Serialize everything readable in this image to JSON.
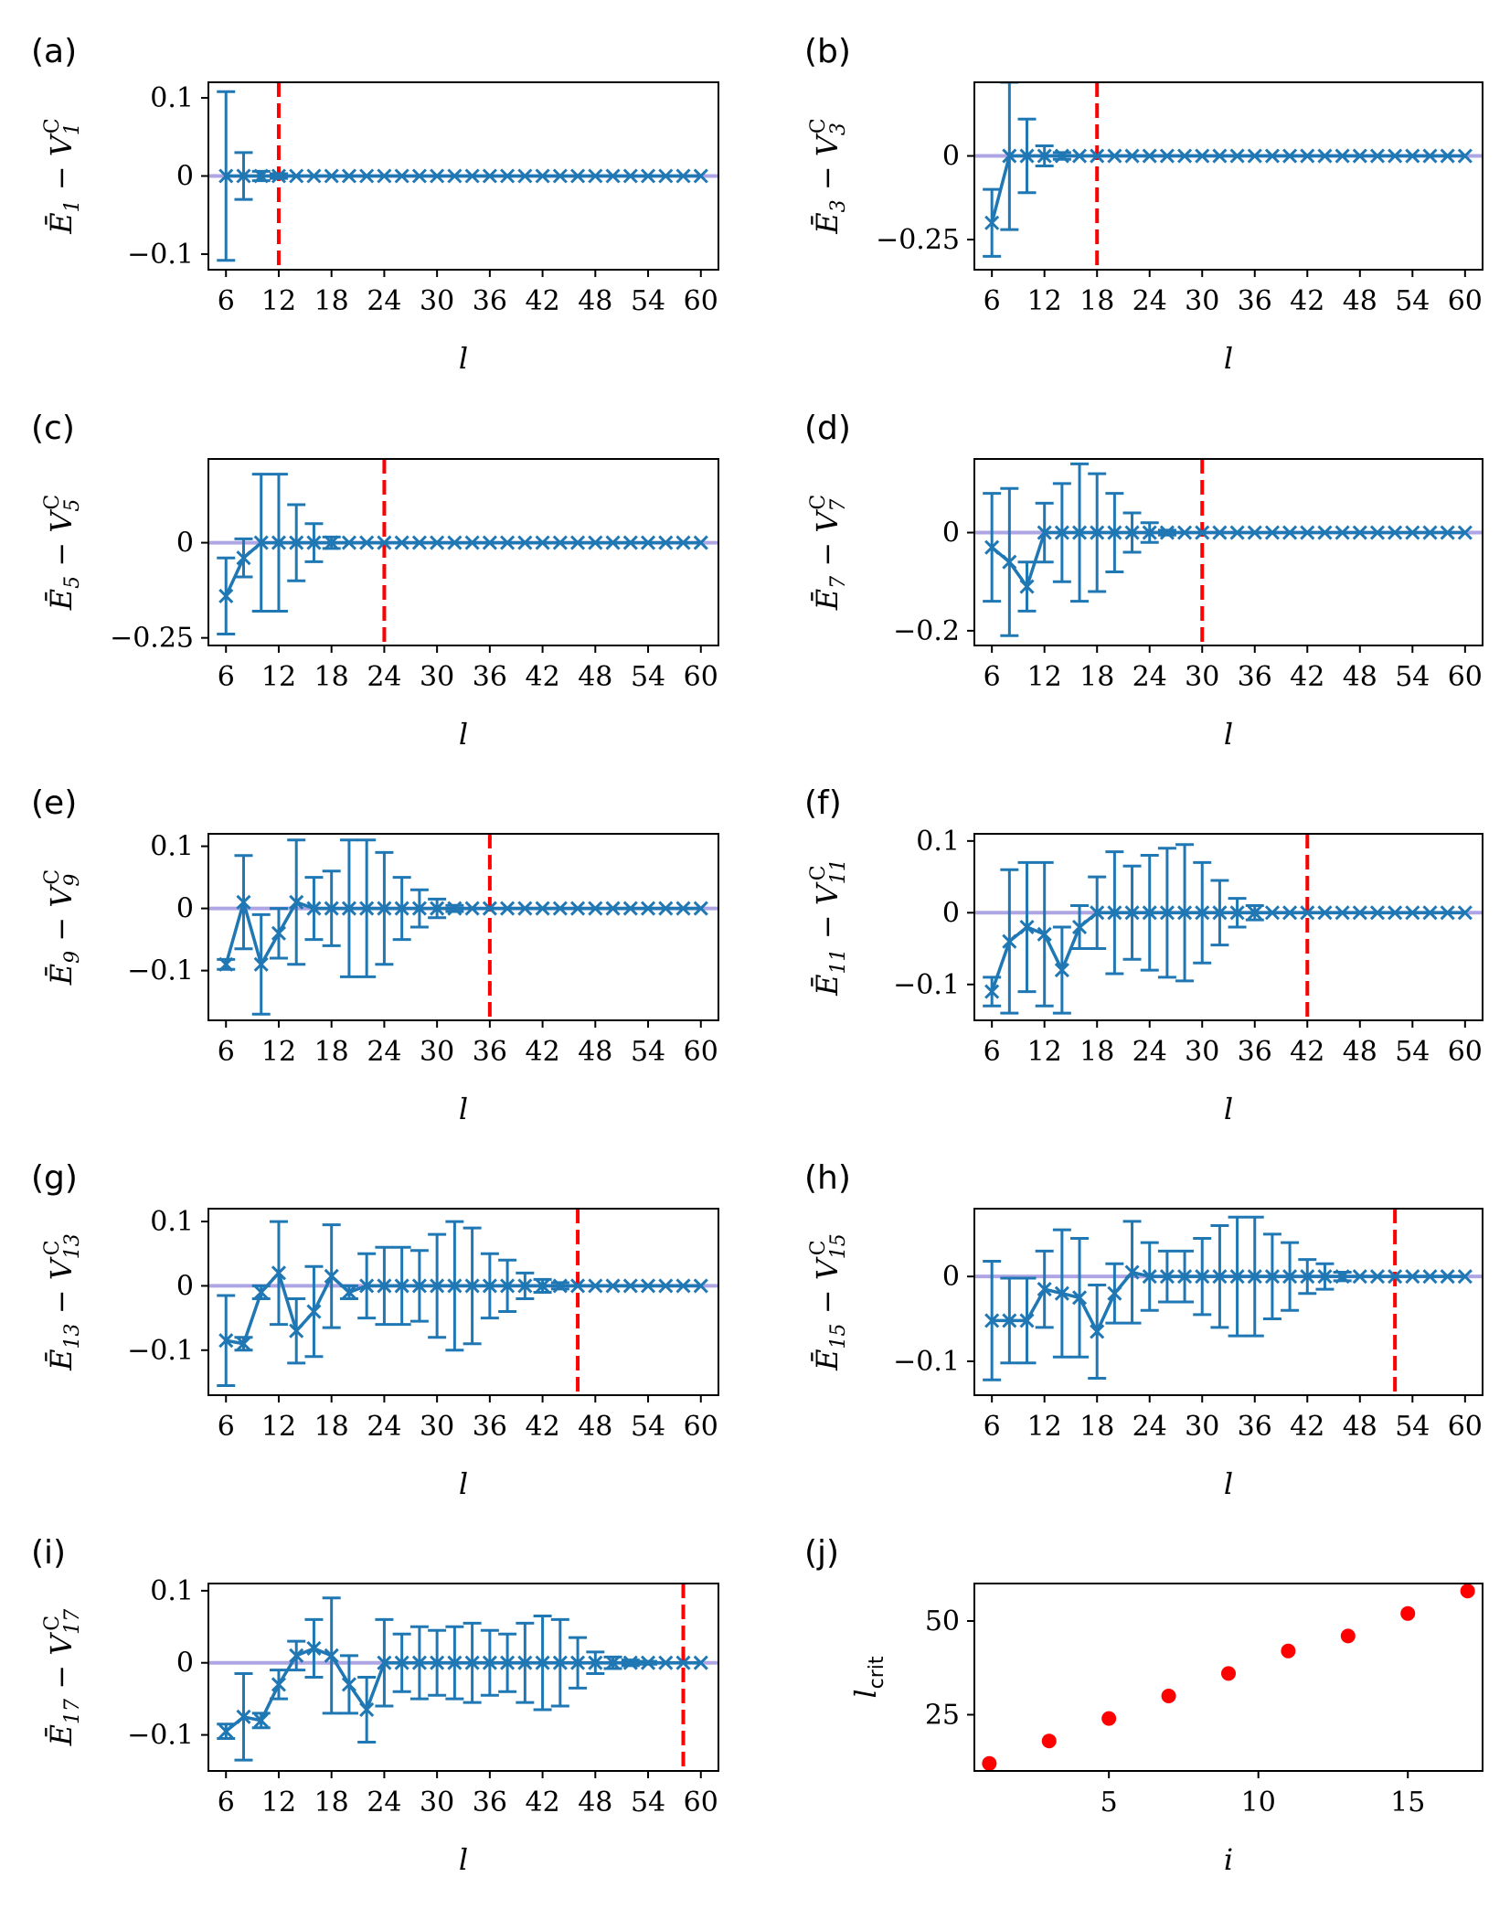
{
  "colors": {
    "series": "#1f77b4",
    "reference": "#9b8fde",
    "critical": "#ff0000",
    "point": "#ff0000"
  },
  "xlabel": "l",
  "chart_data": [
    {
      "type": "line",
      "label": "(a)",
      "ylabel": "Ē1 − V1C",
      "ylim": [
        -0.12,
        0.12
      ],
      "yticks": [
        -0.1,
        0,
        0.1
      ],
      "ytick_labels": [
        "−0.1",
        "0",
        "0.1"
      ],
      "xlim": [
        4,
        62
      ],
      "xticks": [
        6,
        12,
        18,
        24,
        30,
        36,
        42,
        48,
        54,
        60
      ],
      "l_crit": 12,
      "x": [
        6,
        8,
        10,
        12,
        14,
        16,
        18,
        20,
        22,
        24,
        26,
        28,
        30,
        32,
        34,
        36,
        38,
        40,
        42,
        44,
        46,
        48,
        50,
        52,
        54,
        56,
        58,
        60
      ],
      "y": [
        0,
        0,
        0,
        0,
        0,
        0,
        0,
        0,
        0,
        0,
        0,
        0,
        0,
        0,
        0,
        0,
        0,
        0,
        0,
        0,
        0,
        0,
        0,
        0,
        0,
        0,
        0,
        0
      ],
      "yerr": [
        0.108,
        0.03,
        0.006,
        0.003,
        0,
        0,
        0,
        0,
        0,
        0,
        0,
        0,
        0,
        0,
        0,
        0,
        0,
        0,
        0,
        0,
        0,
        0,
        0,
        0,
        0,
        0,
        0,
        0
      ]
    },
    {
      "type": "line",
      "label": "(b)",
      "ylabel": "Ē3 − V3C",
      "ylim": [
        -0.34,
        0.22
      ],
      "yticks": [
        -0.25,
        0
      ],
      "ytick_labels": [
        "−0.25",
        "0"
      ],
      "xlim": [
        4,
        62
      ],
      "xticks": [
        6,
        12,
        18,
        24,
        30,
        36,
        42,
        48,
        54,
        60
      ],
      "l_crit": 18,
      "x": [
        6,
        8,
        10,
        12,
        14,
        16,
        18,
        20,
        22,
        24,
        26,
        28,
        30,
        32,
        34,
        36,
        38,
        40,
        42,
        44,
        46,
        48,
        50,
        52,
        54,
        56,
        58,
        60
      ],
      "y": [
        -0.2,
        0,
        0,
        0,
        0,
        0,
        0,
        0,
        0,
        0,
        0,
        0,
        0,
        0,
        0,
        0,
        0,
        0,
        0,
        0,
        0,
        0,
        0,
        0,
        0,
        0,
        0,
        0
      ],
      "yerr": [
        0.1,
        0.22,
        0.11,
        0.03,
        0.01,
        0,
        0,
        0,
        0,
        0,
        0,
        0,
        0,
        0,
        0,
        0,
        0,
        0,
        0,
        0,
        0,
        0,
        0,
        0,
        0,
        0,
        0,
        0
      ]
    },
    {
      "type": "line",
      "label": "(c)",
      "ylabel": "Ē5 − V5C",
      "ylim": [
        -0.27,
        0.22
      ],
      "yticks": [
        -0.25,
        0
      ],
      "ytick_labels": [
        "−0.25",
        "0"
      ],
      "xlim": [
        4,
        62
      ],
      "xticks": [
        6,
        12,
        18,
        24,
        30,
        36,
        42,
        48,
        54,
        60
      ],
      "l_crit": 24,
      "x": [
        6,
        8,
        10,
        12,
        14,
        16,
        18,
        20,
        22,
        24,
        26,
        28,
        30,
        32,
        34,
        36,
        38,
        40,
        42,
        44,
        46,
        48,
        50,
        52,
        54,
        56,
        58,
        60
      ],
      "y": [
        -0.14,
        -0.04,
        0,
        0,
        0,
        0,
        0,
        0,
        0,
        0,
        0,
        0,
        0,
        0,
        0,
        0,
        0,
        0,
        0,
        0,
        0,
        0,
        0,
        0,
        0,
        0,
        0,
        0
      ],
      "yerr": [
        0.1,
        0.05,
        0.18,
        0.18,
        0.1,
        0.05,
        0.015,
        0,
        0,
        0,
        0,
        0,
        0,
        0,
        0,
        0,
        0,
        0,
        0,
        0,
        0,
        0,
        0,
        0,
        0,
        0,
        0,
        0
      ]
    },
    {
      "type": "line",
      "label": "(d)",
      "ylabel": "Ē7 − V7C",
      "ylim": [
        -0.23,
        0.15
      ],
      "yticks": [
        -0.2,
        0
      ],
      "ytick_labels": [
        "−0.2",
        "0"
      ],
      "xlim": [
        4,
        62
      ],
      "xticks": [
        6,
        12,
        18,
        24,
        30,
        36,
        42,
        48,
        54,
        60
      ],
      "l_crit": 30,
      "x": [
        6,
        8,
        10,
        12,
        14,
        16,
        18,
        20,
        22,
        24,
        26,
        28,
        30,
        32,
        34,
        36,
        38,
        40,
        42,
        44,
        46,
        48,
        50,
        52,
        54,
        56,
        58,
        60
      ],
      "y": [
        -0.03,
        -0.06,
        -0.11,
        0,
        0,
        0,
        0,
        0,
        0,
        0,
        0,
        0,
        0,
        0,
        0,
        0,
        0,
        0,
        0,
        0,
        0,
        0,
        0,
        0,
        0,
        0,
        0,
        0
      ],
      "yerr": [
        0.11,
        0.15,
        0.05,
        0.06,
        0.1,
        0.14,
        0.12,
        0.08,
        0.04,
        0.02,
        0.005,
        0,
        0,
        0,
        0,
        0,
        0,
        0,
        0,
        0,
        0,
        0,
        0,
        0,
        0,
        0,
        0,
        0
      ]
    },
    {
      "type": "line",
      "label": "(e)",
      "ylabel": "Ē9 − V9C",
      "ylim": [
        -0.18,
        0.12
      ],
      "yticks": [
        -0.1,
        0,
        0.1
      ],
      "ytick_labels": [
        "−0.1",
        "0",
        "0.1"
      ],
      "xlim": [
        4,
        62
      ],
      "xticks": [
        6,
        12,
        18,
        24,
        30,
        36,
        42,
        48,
        54,
        60
      ],
      "l_crit": 36,
      "x": [
        6,
        8,
        10,
        12,
        14,
        16,
        18,
        20,
        22,
        24,
        26,
        28,
        30,
        32,
        34,
        36,
        38,
        40,
        42,
        44,
        46,
        48,
        50,
        52,
        54,
        56,
        58,
        60
      ],
      "y": [
        -0.09,
        0.01,
        -0.09,
        -0.04,
        0.01,
        0,
        0,
        0,
        0,
        0,
        0,
        0,
        0,
        0,
        0,
        0,
        0,
        0,
        0,
        0,
        0,
        0,
        0,
        0,
        0,
        0,
        0,
        0
      ],
      "yerr": [
        0.008,
        0.075,
        0.08,
        0.04,
        0.1,
        0.05,
        0.06,
        0.11,
        0.11,
        0.09,
        0.05,
        0.03,
        0.015,
        0.005,
        0,
        0,
        0,
        0,
        0,
        0,
        0,
        0,
        0,
        0,
        0,
        0,
        0,
        0
      ]
    },
    {
      "type": "line",
      "label": "(f)",
      "ylabel": "Ē11 − V11C",
      "ylim": [
        -0.15,
        0.11
      ],
      "yticks": [
        -0.1,
        0,
        0.1
      ],
      "ytick_labels": [
        "−0.1",
        "0",
        "0.1"
      ],
      "xlim": [
        4,
        62
      ],
      "xticks": [
        6,
        12,
        18,
        24,
        30,
        36,
        42,
        48,
        54,
        60
      ],
      "l_crit": 42,
      "x": [
        6,
        8,
        10,
        12,
        14,
        16,
        18,
        20,
        22,
        24,
        26,
        28,
        30,
        32,
        34,
        36,
        38,
        40,
        42,
        44,
        46,
        48,
        50,
        52,
        54,
        56,
        58,
        60
      ],
      "y": [
        -0.11,
        -0.04,
        -0.02,
        -0.03,
        -0.08,
        -0.02,
        0,
        0,
        0,
        0,
        0,
        0,
        0,
        0,
        0,
        0,
        0,
        0,
        0,
        0,
        0,
        0,
        0,
        0,
        0,
        0,
        0,
        0
      ],
      "yerr": [
        0.02,
        0.1,
        0.09,
        0.1,
        0.06,
        0.03,
        0.05,
        0.085,
        0.065,
        0.08,
        0.09,
        0.095,
        0.07,
        0.045,
        0.02,
        0.01,
        0,
        0,
        0,
        0,
        0,
        0,
        0,
        0,
        0,
        0,
        0,
        0
      ]
    },
    {
      "type": "line",
      "label": "(g)",
      "ylabel": "Ē13 − V13C",
      "ylim": [
        -0.17,
        0.12
      ],
      "yticks": [
        -0.1,
        0,
        0.1
      ],
      "ytick_labels": [
        "−0.1",
        "0",
        "0.1"
      ],
      "xlim": [
        4,
        62
      ],
      "xticks": [
        6,
        12,
        18,
        24,
        30,
        36,
        42,
        48,
        54,
        60
      ],
      "l_crit": 46,
      "x": [
        6,
        8,
        10,
        12,
        14,
        16,
        18,
        20,
        22,
        24,
        26,
        28,
        30,
        32,
        34,
        36,
        38,
        40,
        42,
        44,
        46,
        48,
        50,
        52,
        54,
        56,
        58,
        60
      ],
      "y": [
        -0.085,
        -0.09,
        -0.01,
        0.02,
        -0.07,
        -0.04,
        0.015,
        -0.01,
        0,
        0,
        0,
        0,
        0,
        0,
        0,
        0,
        0,
        0,
        0,
        0,
        0,
        0,
        0,
        0,
        0,
        0,
        0,
        0
      ],
      "yerr": [
        0.07,
        0.01,
        0.01,
        0.08,
        0.05,
        0.07,
        0.08,
        0.01,
        0.05,
        0.06,
        0.06,
        0.055,
        0.08,
        0.1,
        0.09,
        0.05,
        0.04,
        0.02,
        0.01,
        0.005,
        0,
        0,
        0,
        0,
        0,
        0,
        0,
        0
      ]
    },
    {
      "type": "line",
      "label": "(h)",
      "ylabel": "Ē15 − V15C",
      "ylim": [
        -0.14,
        0.08
      ],
      "yticks": [
        -0.1,
        0
      ],
      "ytick_labels": [
        "−0.1",
        "0"
      ],
      "xlim": [
        4,
        62
      ],
      "xticks": [
        6,
        12,
        18,
        24,
        30,
        36,
        42,
        48,
        54,
        60
      ],
      "l_crit": 52,
      "x": [
        6,
        8,
        10,
        12,
        14,
        16,
        18,
        20,
        22,
        24,
        26,
        28,
        30,
        32,
        34,
        36,
        38,
        40,
        42,
        44,
        46,
        48,
        50,
        52,
        54,
        56,
        58,
        60
      ],
      "y": [
        -0.052,
        -0.052,
        -0.052,
        -0.015,
        -0.02,
        -0.025,
        -0.065,
        -0.02,
        0.005,
        0,
        0,
        0,
        0,
        0,
        0,
        0,
        0,
        0,
        0,
        0,
        0,
        0,
        0,
        0,
        0,
        0,
        0,
        0
      ],
      "yerr": [
        0.07,
        0.05,
        0.05,
        0.045,
        0.075,
        0.07,
        0.055,
        0.035,
        0.06,
        0.04,
        0.03,
        0.03,
        0.045,
        0.06,
        0.07,
        0.07,
        0.05,
        0.04,
        0.02,
        0.015,
        0.005,
        0,
        0,
        0,
        0,
        0,
        0,
        0
      ]
    },
    {
      "type": "line",
      "label": "(i)",
      "ylabel": "Ē17 − V17C",
      "ylim": [
        -0.15,
        0.11
      ],
      "yticks": [
        -0.1,
        0,
        0.1
      ],
      "ytick_labels": [
        "−0.1",
        "0",
        "0.1"
      ],
      "xlim": [
        4,
        62
      ],
      "xticks": [
        6,
        12,
        18,
        24,
        30,
        36,
        42,
        48,
        54,
        60
      ],
      "l_crit": 58,
      "x": [
        6,
        8,
        10,
        12,
        14,
        16,
        18,
        20,
        22,
        24,
        26,
        28,
        30,
        32,
        34,
        36,
        38,
        40,
        42,
        44,
        46,
        48,
        50,
        52,
        54,
        56,
        58,
        60
      ],
      "y": [
        -0.095,
        -0.075,
        -0.08,
        -0.03,
        0.01,
        0.02,
        0.01,
        -0.03,
        -0.065,
        0,
        0,
        0,
        0,
        0,
        0,
        0,
        0,
        0,
        0,
        0,
        0,
        0,
        0,
        0,
        0,
        0,
        0,
        0
      ],
      "yerr": [
        0.01,
        0.06,
        0.01,
        0.02,
        0.02,
        0.04,
        0.08,
        0.04,
        0.045,
        0.06,
        0.04,
        0.05,
        0.045,
        0.05,
        0.055,
        0.045,
        0.04,
        0.055,
        0.065,
        0.06,
        0.035,
        0.015,
        0.008,
        0.004,
        0.002,
        0,
        0,
        0
      ]
    },
    {
      "type": "scatter",
      "label": "(j)",
      "xlabel": "i",
      "ylabel": "l",
      "ylabel_sub": "crit",
      "xlim": [
        0.5,
        17.5
      ],
      "ylim": [
        10,
        60
      ],
      "xticks": [
        5,
        10,
        15
      ],
      "yticks": [
        25,
        50
      ],
      "x": [
        1,
        3,
        5,
        7,
        9,
        11,
        13,
        15,
        17
      ],
      "y": [
        12,
        18,
        24,
        30,
        36,
        42,
        46,
        52,
        58
      ]
    }
  ]
}
